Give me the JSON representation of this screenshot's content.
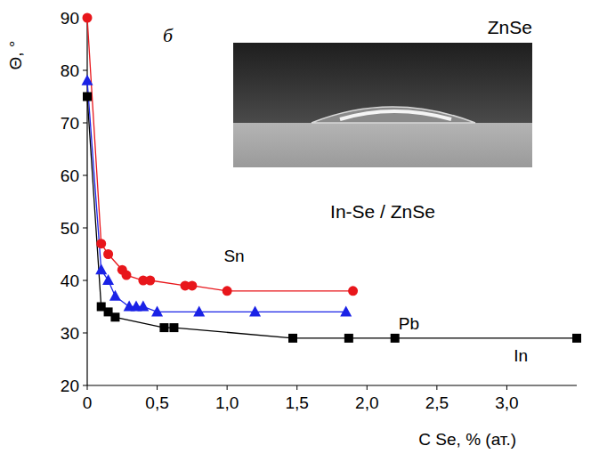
{
  "chart_data": {
    "type": "line",
    "x_label": "C Se, % (ат.)",
    "y_label": "Θ, °",
    "xlim": [
      0,
      3.5
    ],
    "ylim": [
      20,
      90
    ],
    "xticks": [
      {
        "value": 0,
        "label": "0"
      },
      {
        "value": 0.5,
        "label": "0,5"
      },
      {
        "value": 1,
        "label": "1,0"
      },
      {
        "value": 1.5,
        "label": "1,5"
      },
      {
        "value": 2,
        "label": "2,0"
      },
      {
        "value": 2.5,
        "label": "2,5"
      },
      {
        "value": 3,
        "label": "3,0"
      }
    ],
    "yticks": [
      20,
      30,
      40,
      50,
      60,
      70,
      80,
      90
    ],
    "grid": false,
    "annotations": [
      {
        "text": "б"
      },
      {
        "text": "ZnSe"
      },
      {
        "text": "In-Se / ZnSe"
      }
    ],
    "series": [
      {
        "name": "Sn",
        "color": "#e8161b",
        "marker": "circle",
        "line_style": "solid",
        "x": [
          0,
          0.1,
          0.15,
          0.25,
          0.28,
          0.4,
          0.45,
          0.7,
          0.75,
          1.0,
          1.9
        ],
        "values": [
          90,
          47,
          45,
          42,
          41,
          40,
          40,
          39,
          39,
          38,
          38
        ]
      },
      {
        "name": "Pb",
        "color": "#1a22e6",
        "marker": "triangle",
        "line_style": "solid",
        "x": [
          0,
          0.1,
          0.15,
          0.2,
          0.3,
          0.35,
          0.4,
          0.5,
          0.8,
          1.2,
          1.85
        ],
        "values": [
          78,
          42,
          40,
          37,
          35,
          35,
          35,
          34,
          34,
          34,
          34
        ]
      },
      {
        "name": "In",
        "color": "#000000",
        "marker": "square",
        "line_style": "solid",
        "x": [
          0,
          0.1,
          0.15,
          0.2,
          0.55,
          0.62,
          1.47,
          1.87,
          2.2,
          3.5
        ],
        "values": [
          75,
          35,
          34,
          33,
          31,
          31,
          29,
          29,
          29,
          29
        ]
      }
    ]
  }
}
